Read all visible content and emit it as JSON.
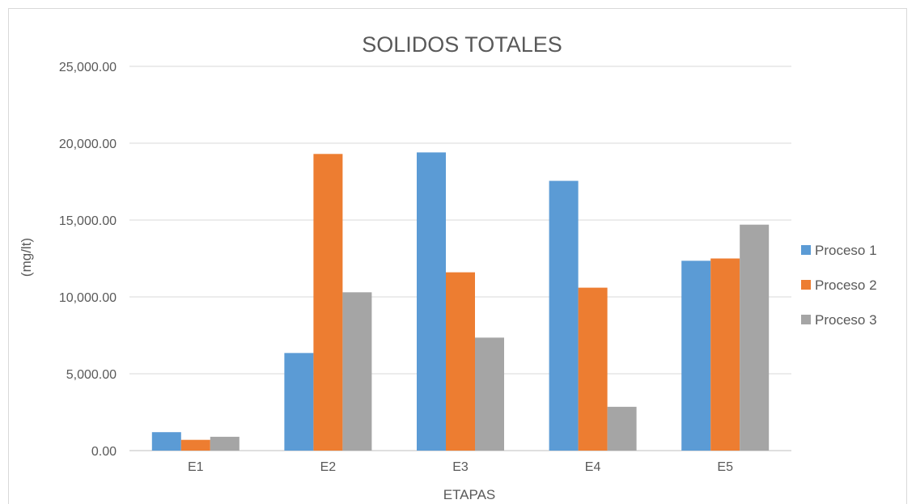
{
  "chart_data": {
    "type": "bar",
    "title": "SOLIDOS TOTALES",
    "xlabel": "ETAPAS",
    "ylabel": "(mg/lt)",
    "categories": [
      "E1",
      "E2",
      "E3",
      "E4",
      "E5"
    ],
    "series": [
      {
        "name": "Proceso 1",
        "color": "#5b9bd5",
        "values": [
          1200,
          6350,
          19400,
          17550,
          12350
        ]
      },
      {
        "name": "Proceso 2",
        "color": "#ed7d31",
        "values": [
          700,
          19300,
          11600,
          10600,
          12500
        ]
      },
      {
        "name": "Proceso 3",
        "color": "#a5a5a5",
        "values": [
          900,
          10300,
          7350,
          2850,
          14700
        ]
      }
    ],
    "ylim": [
      0,
      25000
    ],
    "yticks": [
      "0.00",
      "5,000.00",
      "10,000.00",
      "15,000.00",
      "20,000.00",
      "25,000.00"
    ],
    "grid": true,
    "legend_position": "right"
  }
}
